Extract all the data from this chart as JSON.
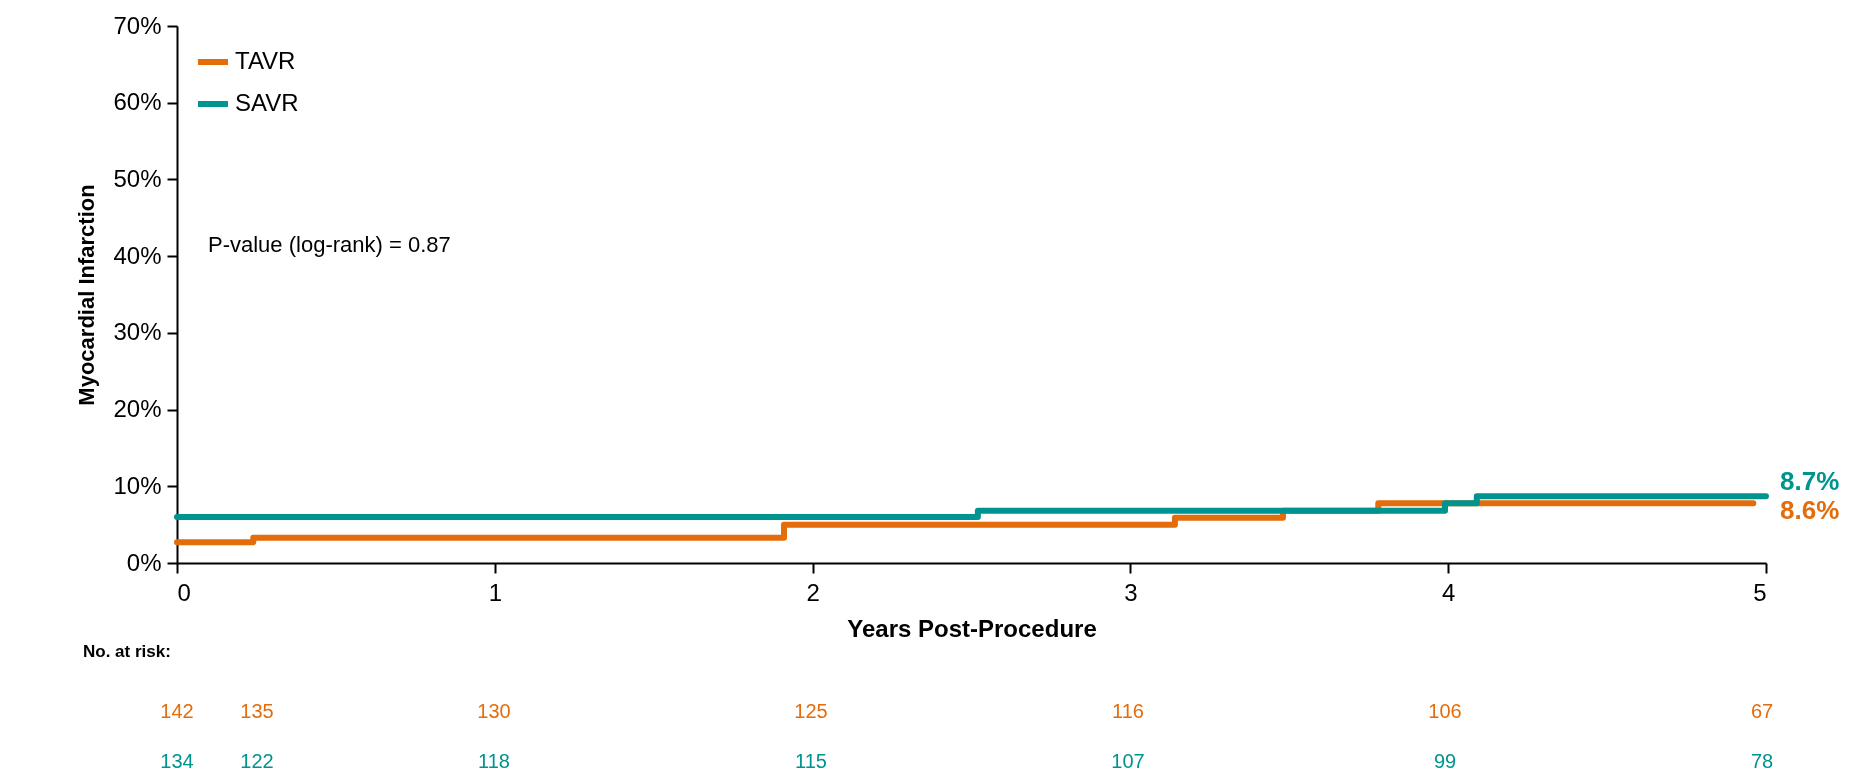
{
  "chart_data": {
    "type": "step",
    "xlabel": "Years Post-Procedure",
    "ylabel": "Myocardial Infarction",
    "series": [
      {
        "name": "TAVR",
        "color": "#e46c0a",
        "x": [
          0,
          0.24,
          1.91,
          3.14,
          3.48,
          3.78,
          4.96
        ],
        "values": [
          2.7,
          3.3,
          5.0,
          5.9,
          6.8,
          7.8,
          7.8
        ]
      },
      {
        "name": "SAVR",
        "color": "#009490",
        "x": [
          0,
          2.52,
          3.99,
          4.09,
          5
        ],
        "values": [
          6.0,
          6.8,
          7.8,
          8.7,
          8.7
        ]
      }
    ],
    "xlim": [
      0,
      5
    ],
    "xticks": [
      0,
      1,
      2,
      3,
      4,
      5
    ],
    "ylim": [
      0,
      70
    ],
    "yticks": [
      {
        "value": 0,
        "label": "0%"
      },
      {
        "value": 10,
        "label": "10%"
      },
      {
        "value": 20,
        "label": "20%"
      },
      {
        "value": 30,
        "label": "30%"
      },
      {
        "value": 40,
        "label": "40%"
      },
      {
        "value": 50,
        "label": "50%"
      },
      {
        "value": 60,
        "label": "60%"
      },
      {
        "value": 70,
        "label": "70%"
      }
    ],
    "grid": false,
    "legend": "top left",
    "marker": "none",
    "line_style": "solid",
    "annotations": [
      "P-value (log-rank) = 0.87",
      {
        "text": "8.7%",
        "x": 5,
        "y": 8.7
      },
      {
        "text": "8.6%",
        "x": 5,
        "y": 8.6
      },
      "No. at risk:",
      "142",
      "135",
      "130",
      "125",
      "116",
      "106",
      "67",
      "134",
      "122",
      "118",
      "115",
      "107",
      "99",
      "78"
    ]
  }
}
